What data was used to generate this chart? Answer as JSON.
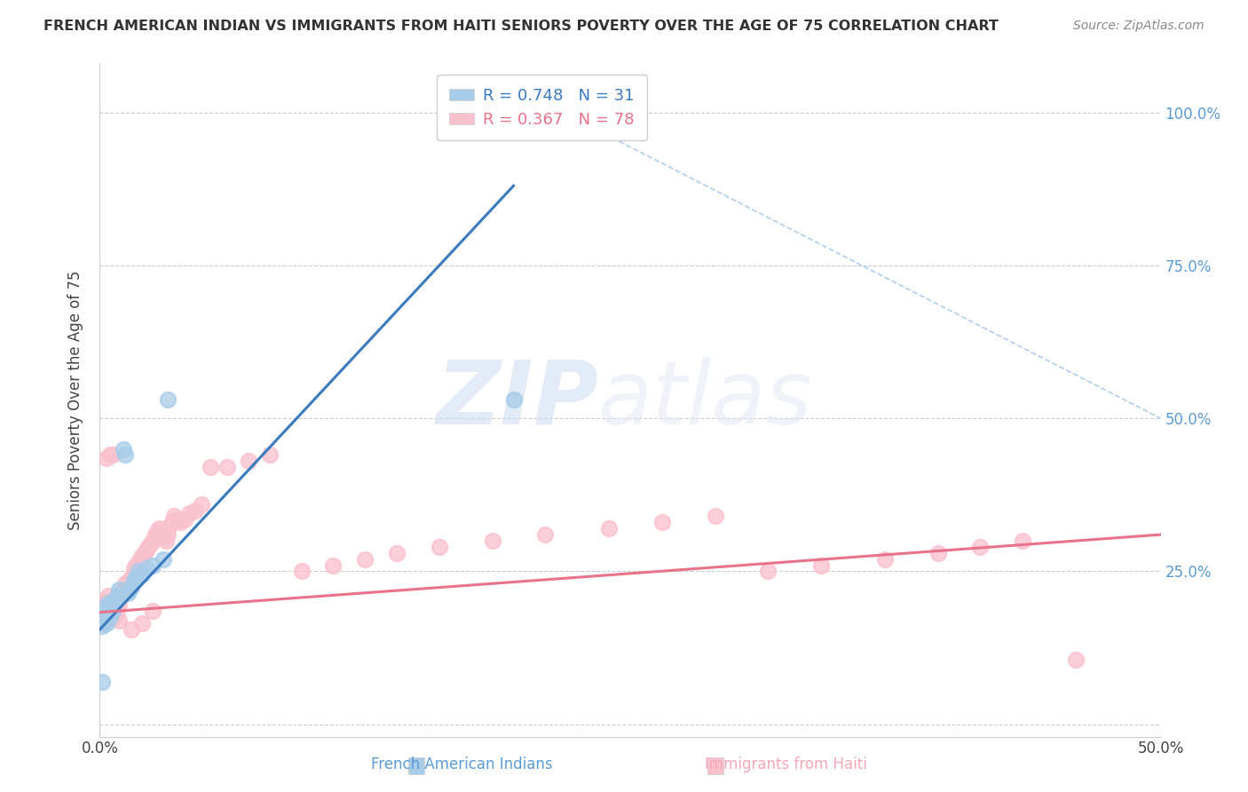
{
  "title": "FRENCH AMERICAN INDIAN VS IMMIGRANTS FROM HAITI SENIORS POVERTY OVER THE AGE OF 75 CORRELATION CHART",
  "source": "Source: ZipAtlas.com",
  "xlabel_left": "French American Indians",
  "xlabel_right": "Immigrants from Haiti",
  "ylabel": "Seniors Poverty Over the Age of 75",
  "watermark_zip": "ZIP",
  "watermark_atlas": "atlas",
  "blue_R": 0.748,
  "blue_N": 31,
  "pink_R": 0.367,
  "pink_N": 78,
  "blue_color": "#a8cce8",
  "pink_color": "#f9c0cd",
  "blue_line_color": "#3a7abf",
  "pink_line_color": "#e8728a",
  "xlim": [
    0.0,
    0.5
  ],
  "ylim": [
    -0.02,
    1.08
  ],
  "yticks": [
    0.0,
    0.25,
    0.5,
    0.75,
    1.0
  ],
  "ytick_labels": [
    "",
    "25.0%",
    "50.0%",
    "75.0%",
    "100.0%"
  ],
  "xticks": [
    0.0,
    0.1,
    0.2,
    0.3,
    0.4,
    0.5
  ],
  "xtick_labels": [
    "0.0%",
    "",
    "",
    "",
    "",
    "50.0%"
  ],
  "blue_scatter_x": [
    0.001,
    0.001,
    0.002,
    0.002,
    0.003,
    0.003,
    0.004,
    0.004,
    0.005,
    0.005,
    0.006,
    0.006,
    0.007,
    0.008,
    0.009,
    0.01,
    0.011,
    0.012,
    0.013,
    0.014,
    0.015,
    0.016,
    0.017,
    0.018,
    0.02,
    0.022,
    0.025,
    0.03,
    0.032,
    0.195,
    0.001
  ],
  "blue_scatter_y": [
    0.175,
    0.16,
    0.185,
    0.17,
    0.195,
    0.165,
    0.19,
    0.18,
    0.2,
    0.175,
    0.195,
    0.185,
    0.2,
    0.21,
    0.22,
    0.21,
    0.45,
    0.44,
    0.215,
    0.22,
    0.225,
    0.235,
    0.24,
    0.25,
    0.245,
    0.255,
    0.26,
    0.27,
    0.53,
    0.53,
    0.07
  ],
  "pink_scatter_x": [
    0.001,
    0.001,
    0.002,
    0.002,
    0.002,
    0.003,
    0.003,
    0.004,
    0.004,
    0.005,
    0.005,
    0.006,
    0.006,
    0.007,
    0.007,
    0.008,
    0.008,
    0.009,
    0.01,
    0.011,
    0.012,
    0.013,
    0.014,
    0.015,
    0.016,
    0.017,
    0.018,
    0.019,
    0.02,
    0.021,
    0.022,
    0.023,
    0.024,
    0.025,
    0.026,
    0.027,
    0.028,
    0.029,
    0.03,
    0.031,
    0.032,
    0.033,
    0.034,
    0.035,
    0.036,
    0.038,
    0.04,
    0.042,
    0.045,
    0.048,
    0.052,
    0.06,
    0.07,
    0.08,
    0.095,
    0.11,
    0.125,
    0.14,
    0.16,
    0.185,
    0.21,
    0.24,
    0.265,
    0.29,
    0.315,
    0.34,
    0.37,
    0.395,
    0.415,
    0.435,
    0.46,
    0.005,
    0.003,
    0.006,
    0.009,
    0.015,
    0.02,
    0.025
  ],
  "pink_scatter_y": [
    0.175,
    0.19,
    0.18,
    0.2,
    0.165,
    0.195,
    0.175,
    0.185,
    0.21,
    0.19,
    0.175,
    0.2,
    0.185,
    0.195,
    0.175,
    0.205,
    0.185,
    0.195,
    0.215,
    0.22,
    0.23,
    0.225,
    0.235,
    0.24,
    0.255,
    0.26,
    0.265,
    0.27,
    0.275,
    0.28,
    0.285,
    0.29,
    0.295,
    0.3,
    0.31,
    0.315,
    0.32,
    0.31,
    0.305,
    0.3,
    0.31,
    0.325,
    0.33,
    0.34,
    0.335,
    0.33,
    0.335,
    0.345,
    0.35,
    0.36,
    0.42,
    0.42,
    0.43,
    0.44,
    0.25,
    0.26,
    0.27,
    0.28,
    0.29,
    0.3,
    0.31,
    0.32,
    0.33,
    0.34,
    0.25,
    0.26,
    0.27,
    0.28,
    0.29,
    0.3,
    0.105,
    0.44,
    0.435,
    0.44,
    0.17,
    0.155,
    0.165,
    0.185
  ],
  "blue_trend_x": [
    0.0,
    0.195
  ],
  "blue_trend_y": [
    0.155,
    0.88
  ],
  "pink_trend_x": [
    0.0,
    0.5
  ],
  "pink_trend_y": [
    0.183,
    0.31
  ],
  "ref_line_x": [
    0.235,
    0.5
  ],
  "ref_line_y": [
    0.97,
    0.5
  ]
}
